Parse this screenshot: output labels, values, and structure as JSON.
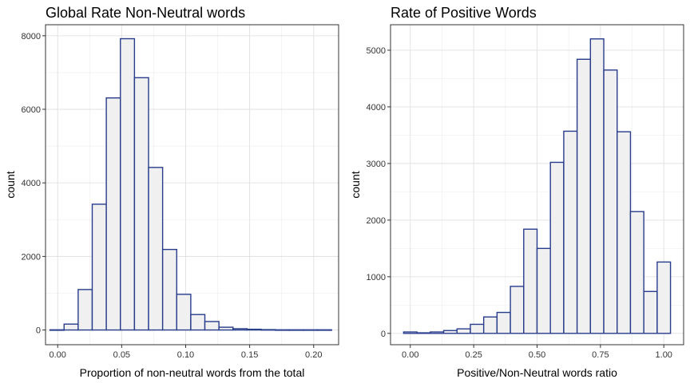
{
  "chart_data": [
    {
      "type": "bar",
      "title": "Global Rate Non-Neutral words",
      "xlabel": "Proportion of non-neutral words from the total",
      "ylabel": "count",
      "grid": true,
      "colors": {
        "bar_fill": "#f0f0f0",
        "bar_stroke": "#283c8c",
        "grid": "#e0e0e0",
        "panel_border": "#333333"
      },
      "xlim": [
        -0.0095,
        0.2195
      ],
      "ylim": [
        -400,
        8300
      ],
      "xticks": [
        0.0,
        0.05,
        0.1,
        0.15,
        0.2
      ],
      "xtick_labels": [
        "0.00",
        "0.05",
        "0.10",
        "0.15",
        "0.20"
      ],
      "yticks": [
        0,
        2000,
        4000,
        6000,
        8000
      ],
      "ytick_labels": [
        "0",
        "2000",
        "4000",
        "6000",
        "8000"
      ],
      "bin_width": 0.011,
      "bins": [
        {
          "x": -0.0005,
          "count": 5
        },
        {
          "x": 0.0105,
          "count": 160
        },
        {
          "x": 0.0215,
          "count": 1100
        },
        {
          "x": 0.0325,
          "count": 3420
        },
        {
          "x": 0.0435,
          "count": 6310
        },
        {
          "x": 0.0545,
          "count": 7920
        },
        {
          "x": 0.0655,
          "count": 6860
        },
        {
          "x": 0.0765,
          "count": 4420
        },
        {
          "x": 0.0875,
          "count": 2190
        },
        {
          "x": 0.0985,
          "count": 970
        },
        {
          "x": 0.1095,
          "count": 420
        },
        {
          "x": 0.1205,
          "count": 230
        },
        {
          "x": 0.1315,
          "count": 75
        },
        {
          "x": 0.1425,
          "count": 35
        },
        {
          "x": 0.1535,
          "count": 20
        },
        {
          "x": 0.1645,
          "count": 10
        },
        {
          "x": 0.1755,
          "count": 5
        },
        {
          "x": 0.1865,
          "count": 5
        },
        {
          "x": 0.1975,
          "count": 5
        },
        {
          "x": 0.2085,
          "count": 5
        }
      ]
    },
    {
      "type": "bar",
      "title": "Rate of Positive Words",
      "xlabel": "Positive/Non-Neutral words ratio",
      "ylabel": "count",
      "grid": true,
      "colors": {
        "bar_fill": "#f0f0f0",
        "bar_stroke": "#283c8c",
        "grid": "#e0e0e0",
        "panel_border": "#333333"
      },
      "xlim": [
        -0.078,
        1.078
      ],
      "ylim": [
        -200,
        5450
      ],
      "xticks": [
        0.0,
        0.25,
        0.5,
        0.75,
        1.0
      ],
      "xtick_labels": [
        "0.00",
        "0.25",
        "0.50",
        "0.75",
        "1.00"
      ],
      "yticks": [
        0,
        1000,
        2000,
        3000,
        4000,
        5000
      ],
      "ytick_labels": [
        "0",
        "1000",
        "2000",
        "3000",
        "4000",
        "5000"
      ],
      "bin_width": 0.0526,
      "bins": [
        {
          "x": 0.0,
          "count": 25
        },
        {
          "x": 0.0526,
          "count": 10
        },
        {
          "x": 0.1053,
          "count": 25
        },
        {
          "x": 0.1579,
          "count": 50
        },
        {
          "x": 0.2105,
          "count": 80
        },
        {
          "x": 0.2632,
          "count": 160
        },
        {
          "x": 0.3158,
          "count": 290
        },
        {
          "x": 0.3684,
          "count": 370
        },
        {
          "x": 0.4211,
          "count": 830
        },
        {
          "x": 0.4737,
          "count": 1840
        },
        {
          "x": 0.5263,
          "count": 1500
        },
        {
          "x": 0.5789,
          "count": 3020
        },
        {
          "x": 0.6316,
          "count": 3570
        },
        {
          "x": 0.6842,
          "count": 4840
        },
        {
          "x": 0.7368,
          "count": 5200
        },
        {
          "x": 0.7895,
          "count": 4650
        },
        {
          "x": 0.8421,
          "count": 3560
        },
        {
          "x": 0.8947,
          "count": 2150
        },
        {
          "x": 0.9474,
          "count": 740
        },
        {
          "x": 1.0,
          "count": 1260
        }
      ]
    }
  ]
}
